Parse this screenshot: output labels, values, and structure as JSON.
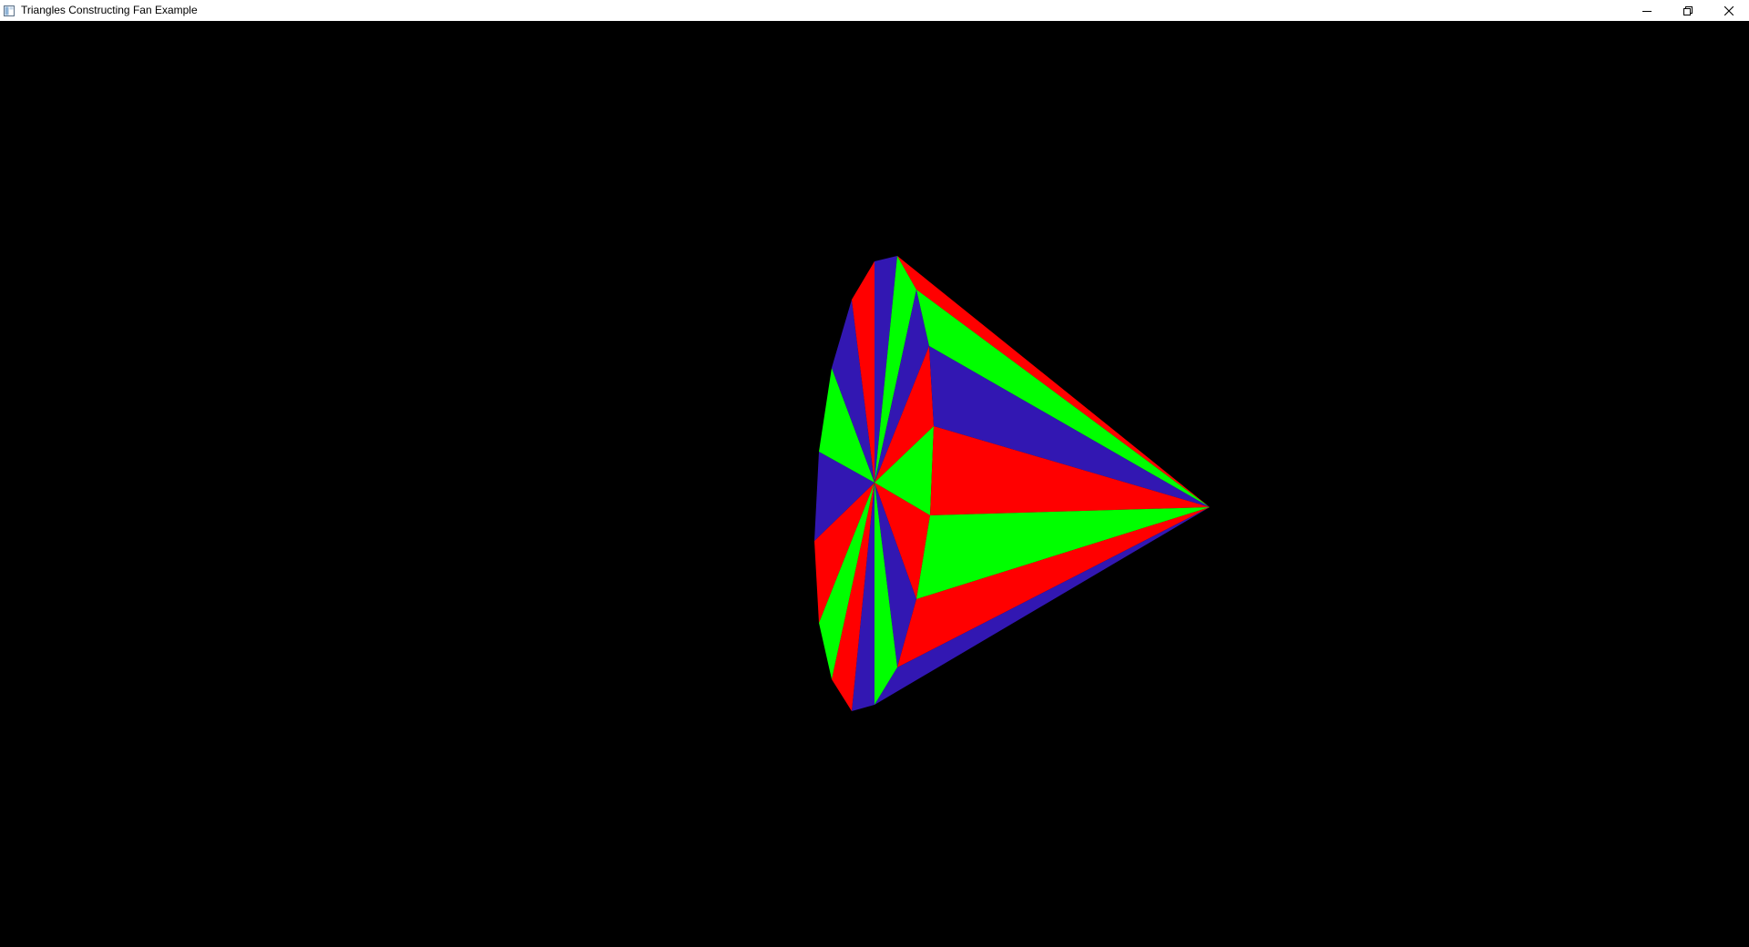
{
  "window": {
    "title": "Triangles Constructing Fan Example",
    "icons": {
      "app": "application-window-icon",
      "minimize": "minimize-icon",
      "restore": "restore-icon",
      "close": "close-icon"
    }
  },
  "scene": {
    "background": "#000000",
    "palette": {
      "red": "#ff0000",
      "green": "#00ff00",
      "blue": "#3217b2"
    }
  }
}
